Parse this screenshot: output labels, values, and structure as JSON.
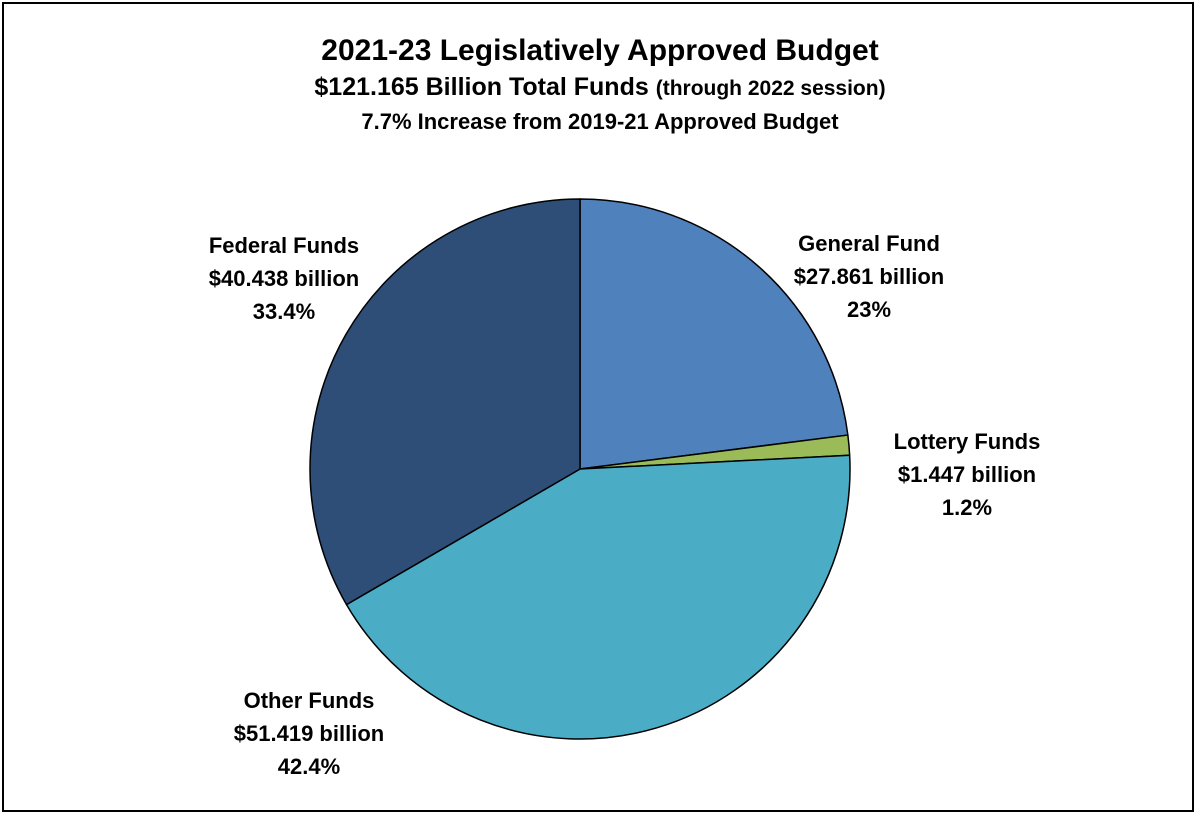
{
  "chart_data": {
    "type": "pie",
    "title": "2021-23 Legislatively Approved Budget",
    "subtitle": "$121.165 Billion Total Funds",
    "subtitle_note": "(through 2022 session)",
    "subtitle2": "7.7% Increase from 2019-21 Approved Budget",
    "total": 121.165,
    "unit": "billion",
    "slices": [
      {
        "name": "General Fund",
        "value": 27.861,
        "value_label": "$27.861 billion",
        "percent_label": "23%",
        "color": "#4f81bd"
      },
      {
        "name": "Lottery Funds",
        "value": 1.447,
        "value_label": "$1.447 billion",
        "percent_label": "1.2%",
        "color": "#9bbb59"
      },
      {
        "name": "Other Funds",
        "value": 51.419,
        "value_label": "$51.419 billion",
        "percent_label": "42.4%",
        "color": "#4bacc6"
      },
      {
        "name": "Federal Funds",
        "value": 40.438,
        "value_label": "$40.438 billion",
        "percent_label": "33.4%",
        "color": "#2e4e77"
      }
    ]
  }
}
